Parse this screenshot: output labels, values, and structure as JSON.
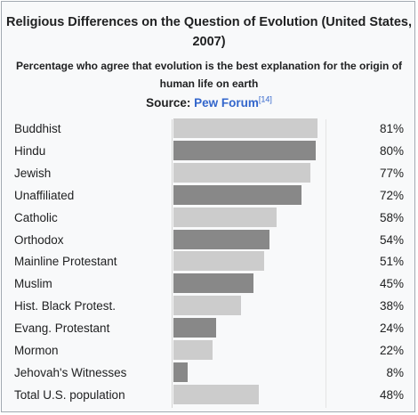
{
  "chart_data": {
    "type": "bar",
    "orientation": "horizontal",
    "title": "Religious Differences on the Question of Evolution (United States, 2007)",
    "subtitle": "Percentage who agree that evolution is the best explanation for the origin of human life on earth",
    "source_prefix": "Source:",
    "source_name": "Pew Forum",
    "source_ref": "[14]",
    "categories": [
      "Buddhist",
      "Hindu",
      "Jewish",
      "Unaffiliated",
      "Catholic",
      "Orthodox",
      "Mainline Protestant",
      "Muslim",
      "Hist. Black Protest.",
      "Evang. Protestant",
      "Mormon",
      "Jehovah's Witnesses",
      "Total U.S. population"
    ],
    "values": [
      81,
      80,
      77,
      72,
      58,
      54,
      51,
      45,
      38,
      24,
      22,
      8,
      48
    ],
    "value_labels": [
      "81%",
      "80%",
      "77%",
      "72%",
      "58%",
      "54%",
      "51%",
      "45%",
      "38%",
      "24%",
      "22%",
      "8%",
      "48%"
    ],
    "xlim": [
      0,
      100
    ],
    "bar_colors": [
      "#cccccc",
      "#888888"
    ]
  }
}
